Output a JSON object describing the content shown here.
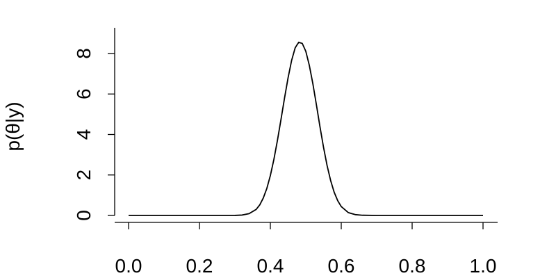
{
  "chart_data": {
    "type": "line",
    "title": "",
    "xlabel": "",
    "ylabel": "p(θ|y)",
    "xlim": [
      0.0,
      1.0
    ],
    "ylim": [
      0,
      9
    ],
    "x_ticks": [
      "0.0",
      "0.2",
      "0.4",
      "0.6",
      "0.8",
      "1.0"
    ],
    "x_tick_values": [
      0.0,
      0.2,
      0.4,
      0.6,
      0.8,
      1.0
    ],
    "y_ticks": [
      "0",
      "2",
      "4",
      "6",
      "8"
    ],
    "y_tick_values": [
      0,
      2,
      4,
      6,
      8
    ],
    "grid": false,
    "series": [
      {
        "x": [
          0.0,
          0.05,
          0.1,
          0.15,
          0.2,
          0.25,
          0.3,
          0.32,
          0.34,
          0.36,
          0.37,
          0.38,
          0.39,
          0.4,
          0.41,
          0.42,
          0.43,
          0.44,
          0.45,
          0.46,
          0.47,
          0.475,
          0.48,
          0.49,
          0.5,
          0.51,
          0.52,
          0.53,
          0.54,
          0.55,
          0.56,
          0.57,
          0.58,
          0.59,
          0.6,
          0.62,
          0.64,
          0.66,
          0.7,
          0.75,
          0.8,
          0.85,
          0.9,
          0.95,
          1.0
        ],
        "y": [
          0,
          0,
          0,
          0,
          0,
          0,
          0.002,
          0.02,
          0.09,
          0.3,
          0.52,
          0.86,
          1.33,
          1.97,
          2.77,
          3.71,
          4.74,
          5.8,
          6.8,
          7.66,
          8.28,
          8.42,
          8.55,
          8.5,
          8.11,
          7.41,
          6.5,
          5.46,
          4.38,
          3.37,
          2.47,
          1.73,
          1.15,
          0.73,
          0.44,
          0.14,
          0.04,
          0.01,
          0,
          0,
          0,
          0,
          0,
          0,
          0
        ]
      }
    ]
  }
}
